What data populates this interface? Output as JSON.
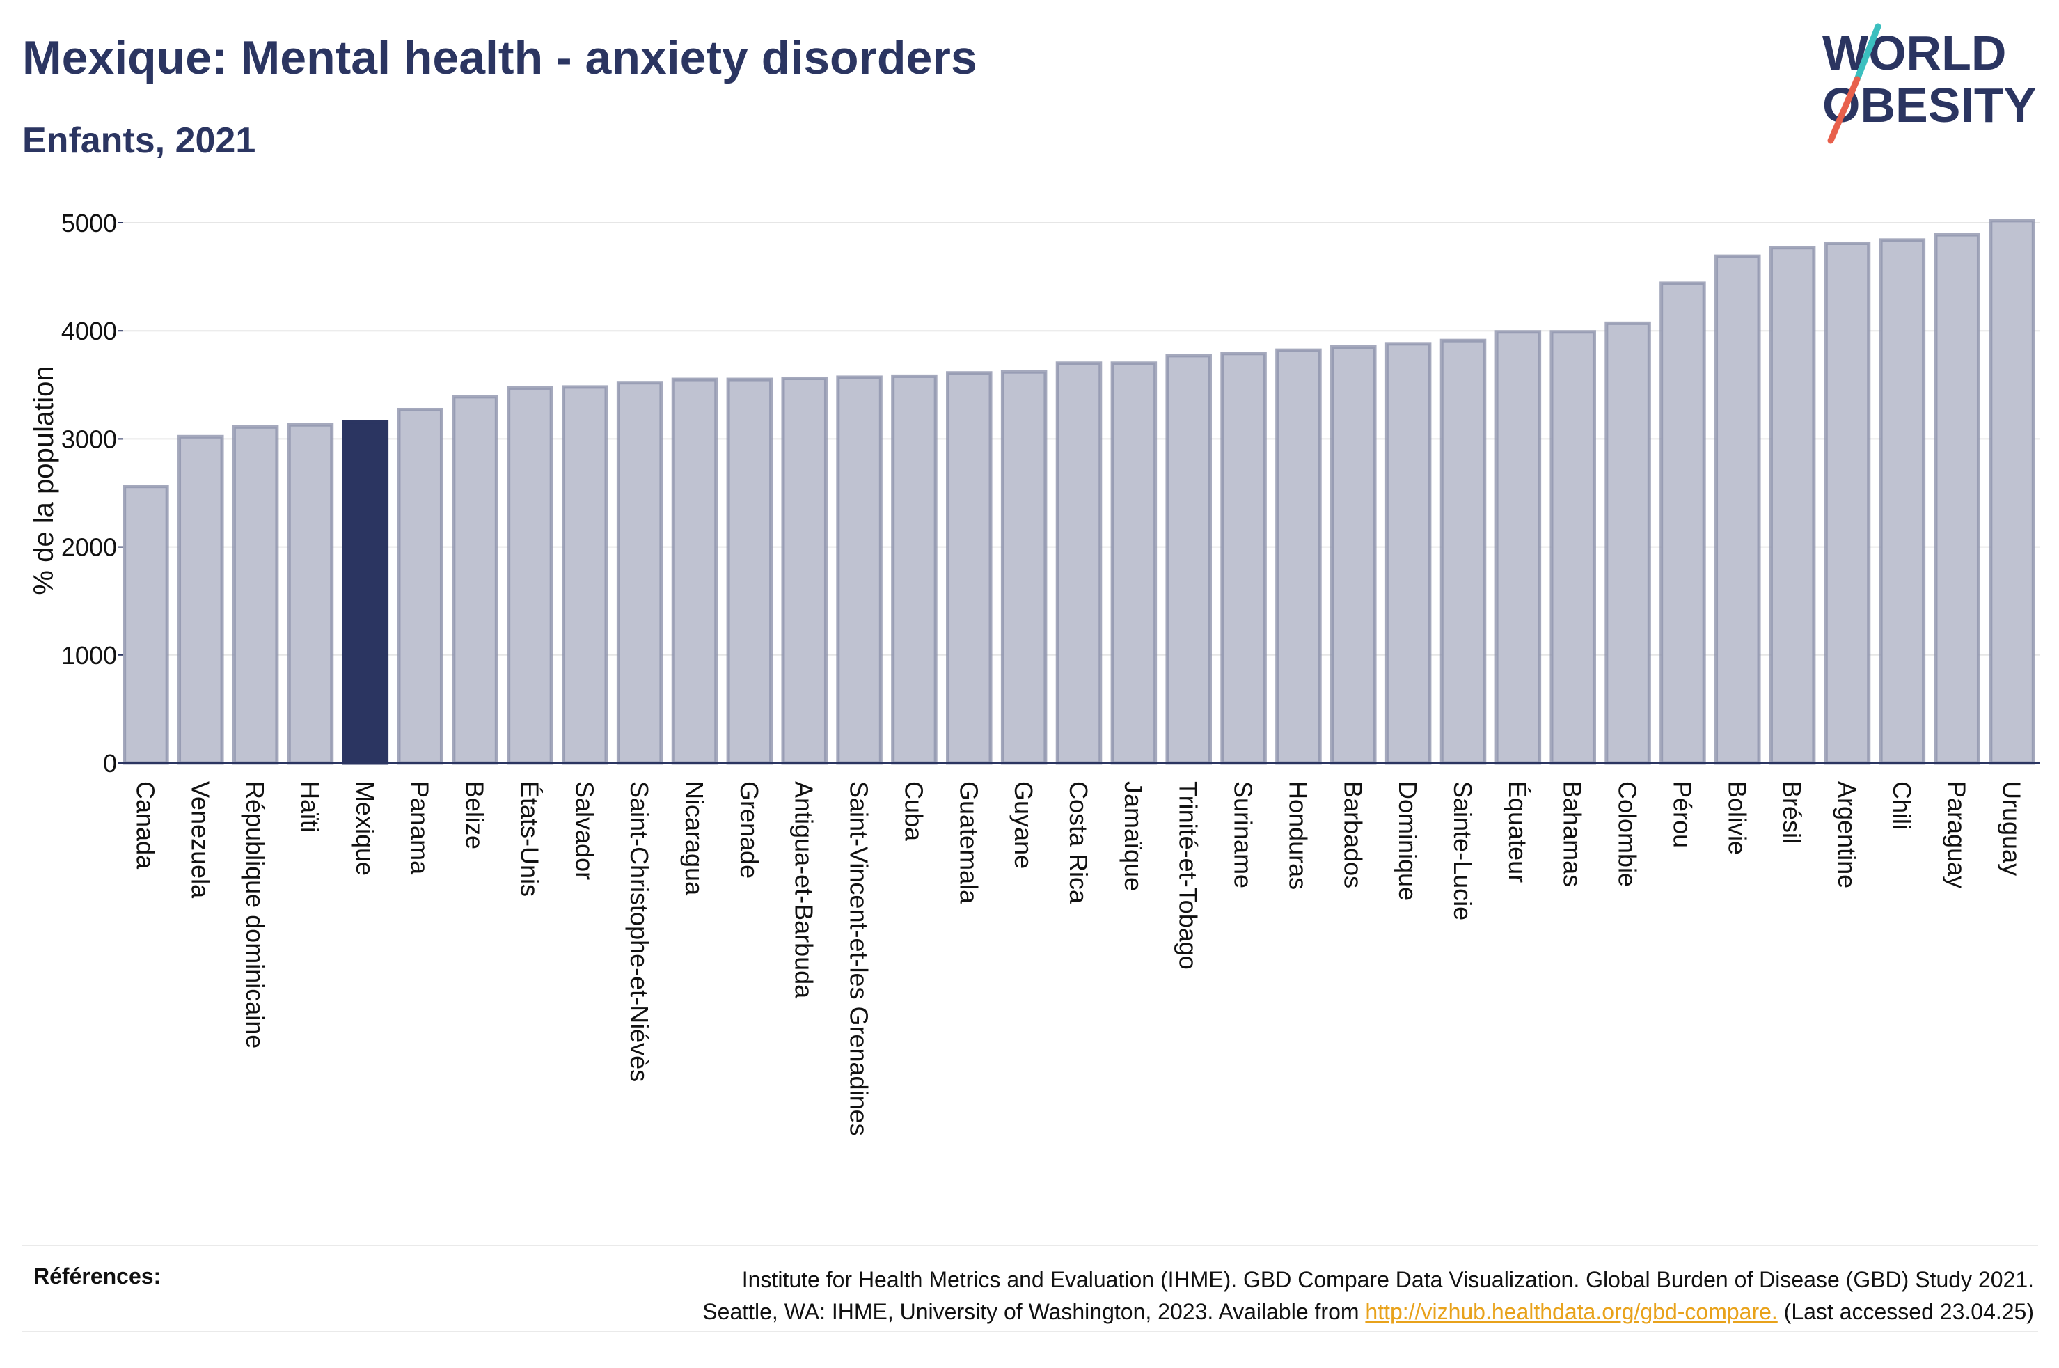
{
  "header": {
    "title": "Mexique: Mental health - anxiety disorders",
    "subtitle": "Enfants, 2021"
  },
  "logo": {
    "line1": "WORLD",
    "line2": "OBESITY"
  },
  "colors": {
    "bar": "#bfc2d1",
    "bar_stroke": "#8e93ad",
    "highlight": "#2b3561",
    "grid": "#e6e6e6",
    "axis": "#2b3561",
    "logo_slash_top": "#3bbfbf",
    "logo_slash_bottom": "#e8604c"
  },
  "chart_data": {
    "type": "bar",
    "title": "Mexique: Mental health - anxiety disorders",
    "subtitle": "Enfants, 2021",
    "xlabel": "",
    "ylabel": "% de la population",
    "ylim": [
      0,
      5200
    ],
    "yticks": [
      0,
      1000,
      2000,
      3000,
      4000,
      5000
    ],
    "grid": true,
    "highlight": "Mexique",
    "categories": [
      "Canada",
      "Venezuela",
      "République dominicaine",
      "Haïti",
      "Mexique",
      "Panama",
      "Belize",
      "États-Unis",
      "Salvador",
      "Saint-Christophe-et-Niévès",
      "Nicaragua",
      "Grenade",
      "Antigua-et-Barbuda",
      "Saint-Vincent-et-les Grenadines",
      "Cuba",
      "Guatemala",
      "Guyane",
      "Costa Rica",
      "Jamaïque",
      "Trinité-et-Tobago",
      "Suriname",
      "Honduras",
      "Barbados",
      "Dominique",
      "Sainte-Lucie",
      "Équateur",
      "Bahamas",
      "Colombie",
      "Pérou",
      "Bolivie",
      "Brésil",
      "Argentine",
      "Chili",
      "Paraguay",
      "Uruguay"
    ],
    "values": [
      2560,
      3020,
      3110,
      3130,
      3160,
      3270,
      3390,
      3470,
      3480,
      3520,
      3550,
      3550,
      3560,
      3570,
      3580,
      3610,
      3620,
      3700,
      3700,
      3770,
      3790,
      3820,
      3850,
      3880,
      3910,
      3990,
      3990,
      4070,
      4440,
      4690,
      4770,
      4810,
      4840,
      4890,
      5020
    ]
  },
  "footer": {
    "references_label": "Références:",
    "reference_line1": "Institute for Health Metrics and Evaluation (IHME). GBD Compare Data Visualization. Global Burden of Disease (GBD) Study 2021.",
    "reference_line2_prefix": "Seattle, WA: IHME, University of Washington, 2023. Available from ",
    "reference_link": "http://vizhub.healthdata.org/gbd-compare.",
    "reference_line2_suffix": " (Last accessed 23.04.25)"
  }
}
